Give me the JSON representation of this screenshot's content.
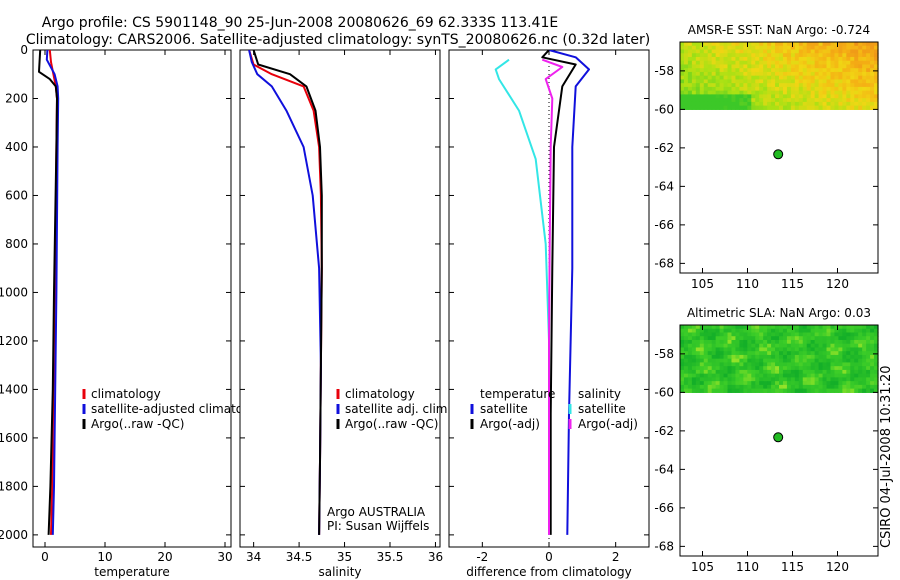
{
  "title": {
    "line1": "Argo profile: CS 5901148_90 25-Jun-2008 20080626_69 62.333S 113.41E",
    "line2": "Climatology: CARS2006. Satellite-adjusted climatology: synTS_20080626.nc (0.32d later)"
  },
  "footer_stamp": "CSIRO 04-Jul-2008 10:31:20",
  "colors": {
    "red": "#e8000b",
    "blue": "#1010dc",
    "black": "#000000",
    "cyan": "#33e6e6",
    "magenta": "#ee22ee",
    "green_dot": "#22bb22",
    "white": "#ffffff"
  },
  "chart_data": [
    {
      "id": "temperature",
      "type": "line",
      "xlabel": "temperature",
      "ylabel": "",
      "xlim": [
        -2,
        31
      ],
      "ylim": [
        2050,
        0
      ],
      "xticks": [
        0,
        10,
        20,
        30
      ],
      "yticks": [
        0,
        200,
        400,
        600,
        800,
        1000,
        1200,
        1400,
        1600,
        1800,
        2000
      ],
      "series": [
        {
          "name": "climatology",
          "color": "red",
          "x": [
            0.8,
            1.0,
            1.4,
            1.8,
            2.0,
            1.9,
            1.8,
            1.6,
            1.4,
            1.2,
            1.0
          ],
          "y": [
            0,
            50,
            100,
            150,
            200,
            400,
            700,
            1000,
            1400,
            1800,
            2000
          ]
        },
        {
          "name": "satellite-adjusted climatology",
          "color": "blue",
          "x": [
            0.4,
            0.3,
            1.6,
            2.1,
            2.2,
            2.1,
            2.0,
            1.9,
            1.7,
            1.5,
            1.3
          ],
          "y": [
            0,
            40,
            100,
            150,
            200,
            400,
            700,
            1000,
            1400,
            1800,
            2000
          ]
        },
        {
          "name": "Argo(..raw -QC)",
          "color": "black",
          "x": [
            -0.8,
            -1.0,
            0.8,
            1.8,
            2.0,
            1.9,
            1.7,
            1.5,
            1.3,
            0.9,
            0.6
          ],
          "y": [
            0,
            90,
            120,
            150,
            200,
            400,
            700,
            1000,
            1400,
            1800,
            2000
          ]
        }
      ],
      "legend": {
        "location": "center-right",
        "entries": [
          "climatology",
          "satellite-adjusted climatology",
          "Argo(..raw -QC)"
        ],
        "colors": [
          "red",
          "blue",
          "black"
        ]
      }
    },
    {
      "id": "salinity",
      "type": "line",
      "xlabel": "salinity",
      "ylabel": "",
      "xlim": [
        33.85,
        36.05
      ],
      "ylim": [
        2050,
        0
      ],
      "xticks": [
        34,
        34.5,
        35,
        35.5,
        36
      ],
      "xticklabels": [
        "34",
        "34.5",
        "35",
        "35.5",
        "36"
      ],
      "series": [
        {
          "name": "climatology",
          "color": "red",
          "x": [
            33.95,
            34.0,
            34.2,
            34.55,
            34.66,
            34.72,
            34.74,
            34.75,
            34.74,
            34.73,
            34.72
          ],
          "y": [
            0,
            60,
            100,
            150,
            250,
            400,
            600,
            900,
            1300,
            1700,
            2000
          ]
        },
        {
          "name": "satellite adj. clim.",
          "color": "blue",
          "x": [
            33.95,
            33.98,
            34.04,
            34.2,
            34.36,
            34.55,
            34.65,
            34.72,
            34.74,
            34.73,
            34.72
          ],
          "y": [
            0,
            50,
            100,
            150,
            250,
            400,
            600,
            900,
            1300,
            1700,
            2000
          ]
        },
        {
          "name": "Argo(..raw -QC)",
          "color": "black",
          "x": [
            34.0,
            34.05,
            34.4,
            34.58,
            34.68,
            34.73,
            34.75,
            34.75,
            34.74,
            34.73,
            34.72
          ],
          "y": [
            0,
            60,
            100,
            150,
            250,
            400,
            600,
            900,
            1300,
            1700,
            2000
          ]
        }
      ],
      "legend": {
        "location": "center-right",
        "entries": [
          "climatology",
          "satellite adj. clim.",
          "Argo(..raw -QC)"
        ],
        "colors": [
          "red",
          "blue",
          "black"
        ]
      },
      "annotations": [
        "Argo AUSTRALIA",
        "PI: Susan Wijffels"
      ]
    },
    {
      "id": "difference",
      "type": "line",
      "xlabel": "difference from climatology",
      "ylabel": "",
      "xlim": [
        -3,
        3
      ],
      "ylim": [
        2050,
        0
      ],
      "xticks": [
        -2,
        0,
        2
      ],
      "series": [
        {
          "name": "temperature satellite",
          "color": "blue",
          "x": [
            0.0,
            0.8,
            1.2,
            0.8,
            0.7,
            0.7,
            0.6,
            0.55
          ],
          "y": [
            0,
            30,
            80,
            150,
            400,
            900,
            1500,
            2000
          ]
        },
        {
          "name": "temperature Argo(-adj)",
          "color": "black",
          "x": [
            0.0,
            -0.2,
            0.8,
            0.4,
            0.15,
            0.1,
            0.05,
            0.05
          ],
          "y": [
            0,
            30,
            60,
            150,
            400,
            900,
            1500,
            2000
          ]
        },
        {
          "name": "salinity satellite",
          "color": "cyan",
          "x": [
            -1.2,
            -1.6,
            -1.5,
            -0.9,
            -0.4,
            -0.1,
            0.0,
            0.0
          ],
          "y": [
            40,
            80,
            120,
            250,
            450,
            800,
            1200,
            2000
          ]
        },
        {
          "name": "salinity Argo(-adj)",
          "color": "magenta",
          "x": [
            -0.2,
            0.4,
            -0.1,
            0.1,
            0.05,
            0.02,
            0.0,
            0.0
          ],
          "y": [
            40,
            70,
            120,
            200,
            400,
            800,
            1200,
            2000
          ]
        }
      ],
      "legend": {
        "location": "center",
        "groups": [
          {
            "heading": "temperature",
            "entries": [
              "satellite",
              "Argo(-adj)"
            ],
            "colors": [
              "blue",
              "black"
            ]
          },
          {
            "heading": "salinity",
            "entries": [
              "satellite",
              "Argo(-adj)"
            ],
            "colors": [
              "cyan",
              "magenta"
            ]
          }
        ]
      }
    },
    {
      "id": "sst_map",
      "type": "heatmap",
      "title": "AMSR-E SST: NaN Argo: -0.724",
      "xlim": [
        102.5,
        124.5
      ],
      "ylim": [
        -68.5,
        -56.5
      ],
      "xticks": [
        105,
        110,
        115,
        120
      ],
      "yticks": [
        -58,
        -60,
        -62,
        -64,
        -66,
        -68
      ],
      "data_extent_lat": [
        -60,
        -56.5
      ],
      "point": {
        "lon": 113.41,
        "lat": -62.333
      }
    },
    {
      "id": "sla_map",
      "type": "heatmap",
      "title": "Altimetric SLA: NaN Argo: 0.03",
      "xlim": [
        102.5,
        124.5
      ],
      "ylim": [
        -68.5,
        -56.5
      ],
      "xticks": [
        105,
        110,
        115,
        120
      ],
      "yticks": [
        -58,
        -60,
        -62,
        -64,
        -66,
        -68
      ],
      "data_extent_lat": [
        -60,
        -56.5
      ],
      "point": {
        "lon": 113.41,
        "lat": -62.333
      }
    }
  ]
}
